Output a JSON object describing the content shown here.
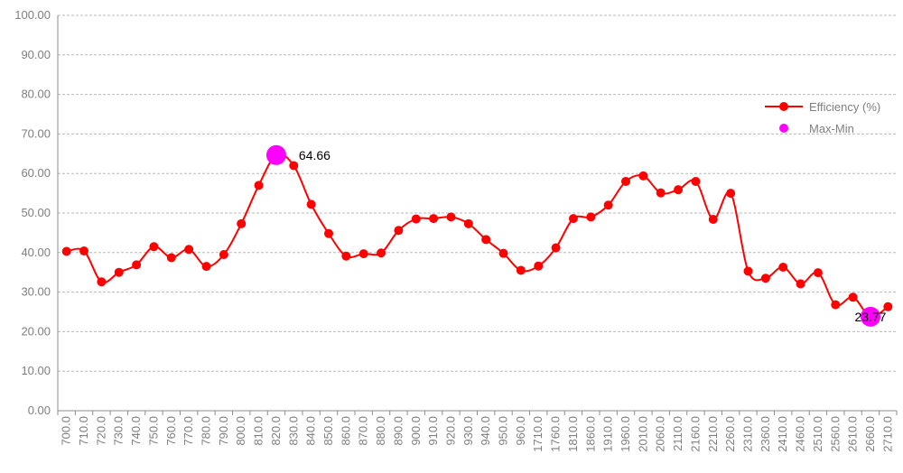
{
  "chart_data": {
    "type": "line",
    "title": "",
    "xlabel": "",
    "ylabel": "",
    "ylim": [
      0,
      100
    ],
    "yticks": [
      "0.00",
      "10.00",
      "20.00",
      "30.00",
      "40.00",
      "50.00",
      "60.00",
      "70.00",
      "80.00",
      "90.00",
      "100.00"
    ],
    "categories": [
      "700.0",
      "710.0",
      "720.0",
      "730.0",
      "740.0",
      "750.0",
      "760.0",
      "770.0",
      "780.0",
      "790.0",
      "800.0",
      "810.0",
      "820.0",
      "830.0",
      "840.0",
      "850.0",
      "860.0",
      "870.0",
      "880.0",
      "890.0",
      "900.0",
      "910.0",
      "920.0",
      "930.0",
      "940.0",
      "950.0",
      "960.0",
      "1710.0",
      "1760.0",
      "1810.0",
      "1860.0",
      "1910.0",
      "1960.0",
      "2010.0",
      "2060.0",
      "2110.0",
      "2160.0",
      "2210.0",
      "2260.0",
      "2310.0",
      "2360.0",
      "2410.0",
      "2460.0",
      "2510.0",
      "2560.0",
      "2610.0",
      "2660.0",
      "2710.0"
    ],
    "grid": true,
    "legend_position": "right",
    "series": [
      {
        "name": "Efficiency (%)",
        "color": "#ff0000",
        "marker": "circle",
        "values": [
          40.3,
          40.4,
          32.6,
          35.0,
          36.9,
          41.5,
          38.7,
          40.8,
          36.5,
          39.5,
          47.3,
          57.0,
          64.66,
          62.0,
          52.2,
          44.8,
          39.1,
          39.7,
          39.9,
          45.6,
          48.5,
          48.6,
          49.0,
          47.3,
          43.3,
          39.8,
          35.5,
          36.6,
          41.2,
          48.6,
          49.0,
          52.0,
          58.0,
          59.4,
          55.1,
          55.9,
          58.0,
          48.4,
          55.0,
          35.3,
          33.5,
          36.3,
          32.1,
          34.9,
          26.8,
          28.7,
          23.77,
          26.3
        ]
      },
      {
        "name": "Max-Min",
        "color": "#ff00ff",
        "marker": "circle",
        "points": [
          {
            "category": "820.0",
            "value": 64.66,
            "label": "64.66"
          },
          {
            "category": "2660.0",
            "value": 23.77,
            "label": "23.77"
          }
        ]
      }
    ]
  }
}
